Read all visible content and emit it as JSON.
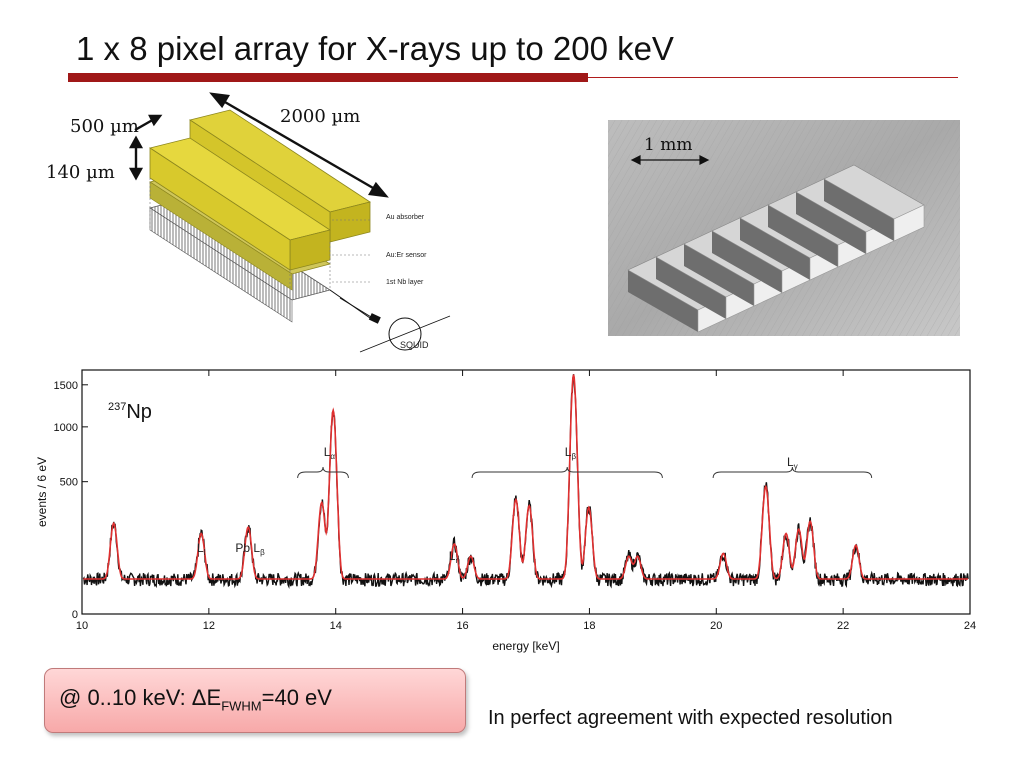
{
  "slide": {
    "title": "1 x 8 pixel array for X-rays up to 200 keV",
    "callout": {
      "prefix": "@ 0..10 keV: ΔE",
      "subscript": "FWHM",
      "suffix": "=40 eV"
    },
    "conclusion": "In perfect agreement with expected resolution"
  },
  "diagram": {
    "dim_width": "500 µm",
    "dim_height": "140 µm",
    "dim_length": "2000 µm",
    "layers": [
      "Au absorber",
      "Au:Er sensor",
      "1st Nb layer"
    ],
    "readout": "SQUID"
  },
  "photo": {
    "scale_label": "1 mm",
    "pixel_count": 8
  },
  "colors": {
    "accent": "#a01818",
    "fit_line": "#e03030",
    "data_line": "#111111",
    "callout_bg": "#f7a9a9"
  },
  "chart_data": {
    "type": "line",
    "xlabel": "energy [keV]",
    "ylabel": "events / 6 eV",
    "xlim": [
      10,
      24
    ],
    "xticks": [
      10,
      12,
      14,
      16,
      18,
      20,
      22,
      24
    ],
    "yticks": [
      0,
      500,
      1000,
      1500
    ],
    "annotation": "237Np",
    "series": [
      {
        "style": "measured spectrum (black)",
        "x": [
          10.5,
          11.88,
          12.62,
          13.78,
          13.96,
          15.87,
          16.13,
          16.84,
          17.05,
          17.75,
          17.99,
          18.62,
          18.76,
          20.11,
          20.78,
          21.1,
          21.3,
          21.48,
          22.2
        ],
        "y": [
          200,
          150,
          180,
          320,
          1150,
          105,
          60,
          340,
          300,
          1600,
          290,
          60,
          60,
          70,
          430,
          150,
          170,
          210,
          100
        ]
      },
      {
        "style": "fit (red)",
        "x": [
          10.5,
          11.88,
          12.62,
          13.78,
          13.96,
          15.87,
          16.13,
          16.84,
          17.05,
          17.75,
          17.99,
          18.62,
          18.76,
          20.11,
          20.78,
          21.1,
          21.3,
          21.48,
          22.2
        ],
        "y": [
          200,
          150,
          180,
          320,
          1150,
          105,
          60,
          340,
          300,
          1600,
          290,
          60,
          60,
          70,
          430,
          150,
          170,
          210,
          100
        ]
      }
    ],
    "line_labels": [
      {
        "main": "L",
        "sub": "l",
        "x": 11.88
      },
      {
        "main": "Pb L",
        "sub": "β",
        "x": 12.65
      },
      {
        "main": "L",
        "sub": "α",
        "x": 13.9
      },
      {
        "main": "L",
        "sub": "η",
        "x": 15.87
      },
      {
        "main": "L",
        "sub": "β",
        "x": 17.7
      },
      {
        "main": "L",
        "sub": "γ",
        "x": 21.2
      }
    ],
    "groups": [
      {
        "label": "Lα",
        "x_from": 13.4,
        "x_to": 14.2
      },
      {
        "label": "Lβ",
        "x_from": 16.15,
        "x_to": 19.15
      },
      {
        "label": "Lγ",
        "x_from": 19.95,
        "x_to": 22.45
      }
    ]
  }
}
